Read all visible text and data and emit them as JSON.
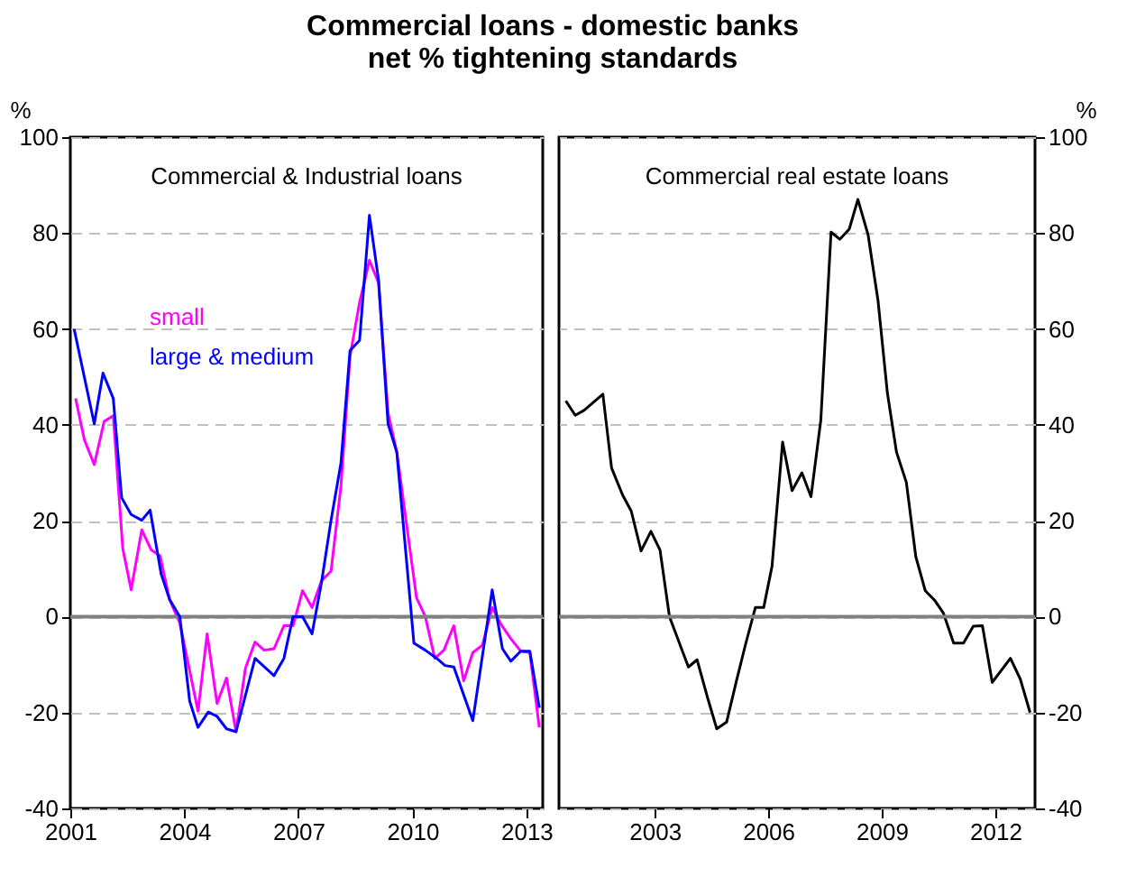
{
  "chart_data": [
    {
      "type": "line",
      "title": "Commercial loans - domestic banks",
      "subtitle": "net % tightening standards",
      "ylabel": "%",
      "annotations": [
        "Commercial & Industrial loans"
      ],
      "xlim": [
        2001,
        2013.43
      ],
      "xticks": [
        2001,
        2004,
        2007,
        2010,
        2013
      ],
      "ylim": [
        -40,
        100
      ],
      "yticks": [
        -40,
        -20,
        0,
        20,
        40,
        60,
        80,
        100
      ],
      "grid": "y",
      "line_style": "solid",
      "marker": "none",
      "ref_lines": [
        {
          "axis": "y",
          "value": 0,
          "color": "#808080"
        }
      ],
      "series": [
        {
          "name": "small",
          "color": "#ff00ff",
          "x": [
            2001.14,
            2001.37,
            2001.63,
            2001.89,
            2002.13,
            2002.38,
            2002.6,
            2002.88,
            2003.13,
            2003.36,
            2003.61,
            2003.88,
            2004.36,
            2004.6,
            2004.86,
            2005.11,
            2005.36,
            2005.61,
            2005.86,
            2006.1,
            2006.36,
            2006.62,
            2006.86,
            2007.11,
            2007.36,
            2007.61,
            2007.86,
            2008.12,
            2008.36,
            2008.61,
            2008.87,
            2009.11,
            2009.36,
            2009.59,
            2010.11,
            2010.34,
            2010.59,
            2010.83,
            2011.09,
            2011.35,
            2011.59,
            2011.84,
            2012.1,
            2012.34,
            2012.59,
            2012.85,
            2013.09,
            2013.34
          ],
          "values": [
            45.5,
            36.9,
            31.7,
            40.7,
            41.9,
            14.2,
            5.6,
            18.1,
            13.9,
            12.7,
            3.6,
            -1.3,
            -19.7,
            -3.6,
            -18.1,
            -12.8,
            -24,
            -10.7,
            -5.3,
            -7,
            -6.7,
            -1.9,
            -1.9,
            5.4,
            1.9,
            7.5,
            9.5,
            27.2,
            54.3,
            65.5,
            74.3,
            69.6,
            42.5,
            34.3,
            3.9,
            0,
            -8.7,
            -7,
            -1.9,
            -13.4,
            -7.5,
            -6,
            1.9,
            -1.7,
            -4.6,
            -7.2,
            -7.5,
            -23.1
          ]
        },
        {
          "name": "large & medium",
          "color": "#0000ff",
          "x": [
            2001.1,
            2001.63,
            2001.86,
            2002.13,
            2002.35,
            2002.6,
            2002.88,
            2003.1,
            2003.39,
            2003.61,
            2003.88,
            2004.14,
            2004.36,
            2004.63,
            2004.86,
            2005.11,
            2005.36,
            2005.86,
            2006.36,
            2006.62,
            2006.86,
            2007.11,
            2007.36,
            2007.61,
            2007.86,
            2008.12,
            2008.36,
            2008.61,
            2008.87,
            2009.11,
            2009.36,
            2009.59,
            2010.04,
            2010.34,
            2010.64,
            2010.86,
            2011.09,
            2011.59,
            2012.1,
            2012.37,
            2012.59,
            2012.85,
            2013.09,
            2013.34
          ],
          "values": [
            60,
            40.2,
            50.8,
            45.5,
            24.8,
            21.3,
            20.1,
            22.2,
            8.9,
            3.6,
            0,
            -17.6,
            -23.1,
            -19.9,
            -20.8,
            -23.4,
            -24,
            -8.7,
            -12.3,
            -8.7,
            0,
            0,
            -3.6,
            7.2,
            20.1,
            32,
            55.5,
            57.6,
            83.7,
            70.2,
            40.2,
            34.3,
            -5.5,
            -7,
            -8.7,
            -10.2,
            -10.5,
            -21.7,
            5.6,
            -6.7,
            -9.3,
            -7.2,
            -7.2,
            -19
          ]
        }
      ]
    },
    {
      "type": "line",
      "ylabel": "%",
      "annotations": [
        "Commercial real estate loans"
      ],
      "xlim": [
        2000.47,
        2013.05
      ],
      "xticks": [
        2003,
        2006,
        2009,
        2012
      ],
      "ylim": [
        -40,
        100
      ],
      "yticks": [
        -40,
        -20,
        0,
        20,
        40,
        60,
        80,
        100
      ],
      "grid": "y",
      "line_style": "solid",
      "marker": "none",
      "ref_lines": [
        {
          "axis": "y",
          "value": 0,
          "color": "#808080"
        }
      ],
      "series": [
        {
          "color": "#000000",
          "x": [
            2000.65,
            2000.9,
            2001.13,
            2001.63,
            2001.86,
            2002.15,
            2002.38,
            2002.64,
            2002.9,
            2003.14,
            2003.39,
            2003.89,
            2004.12,
            2004.4,
            2004.64,
            2004.9,
            2005.16,
            2005.4,
            2005.66,
            2005.88,
            2006.1,
            2006.38,
            2006.63,
            2006.89,
            2007.13,
            2007.39,
            2007.66,
            2007.89,
            2008.14,
            2008.37,
            2008.64,
            2008.9,
            2009.15,
            2009.39,
            2009.65,
            2009.9,
            2010.15,
            2010.4,
            2010.63,
            2010.9,
            2011.16,
            2011.42,
            2011.66,
            2011.92,
            2012.4,
            2012.66,
            2012.92
          ],
          "values": [
            45,
            42,
            43,
            46.4,
            31,
            25.4,
            22,
            13.7,
            17.8,
            13.9,
            0,
            -10.5,
            -9,
            -17,
            -23.4,
            -22,
            -13.4,
            -5.8,
            1.9,
            1.9,
            10.5,
            36.4,
            26.3,
            30,
            25,
            41,
            80.2,
            78.7,
            80.8,
            87,
            79.6,
            66,
            46.6,
            34.3,
            28,
            12.5,
            5.4,
            3.4,
            0.7,
            -5.5,
            -5.5,
            -2,
            -1.9,
            -13.7,
            -8.7,
            -13,
            -20
          ]
        }
      ]
    }
  ]
}
